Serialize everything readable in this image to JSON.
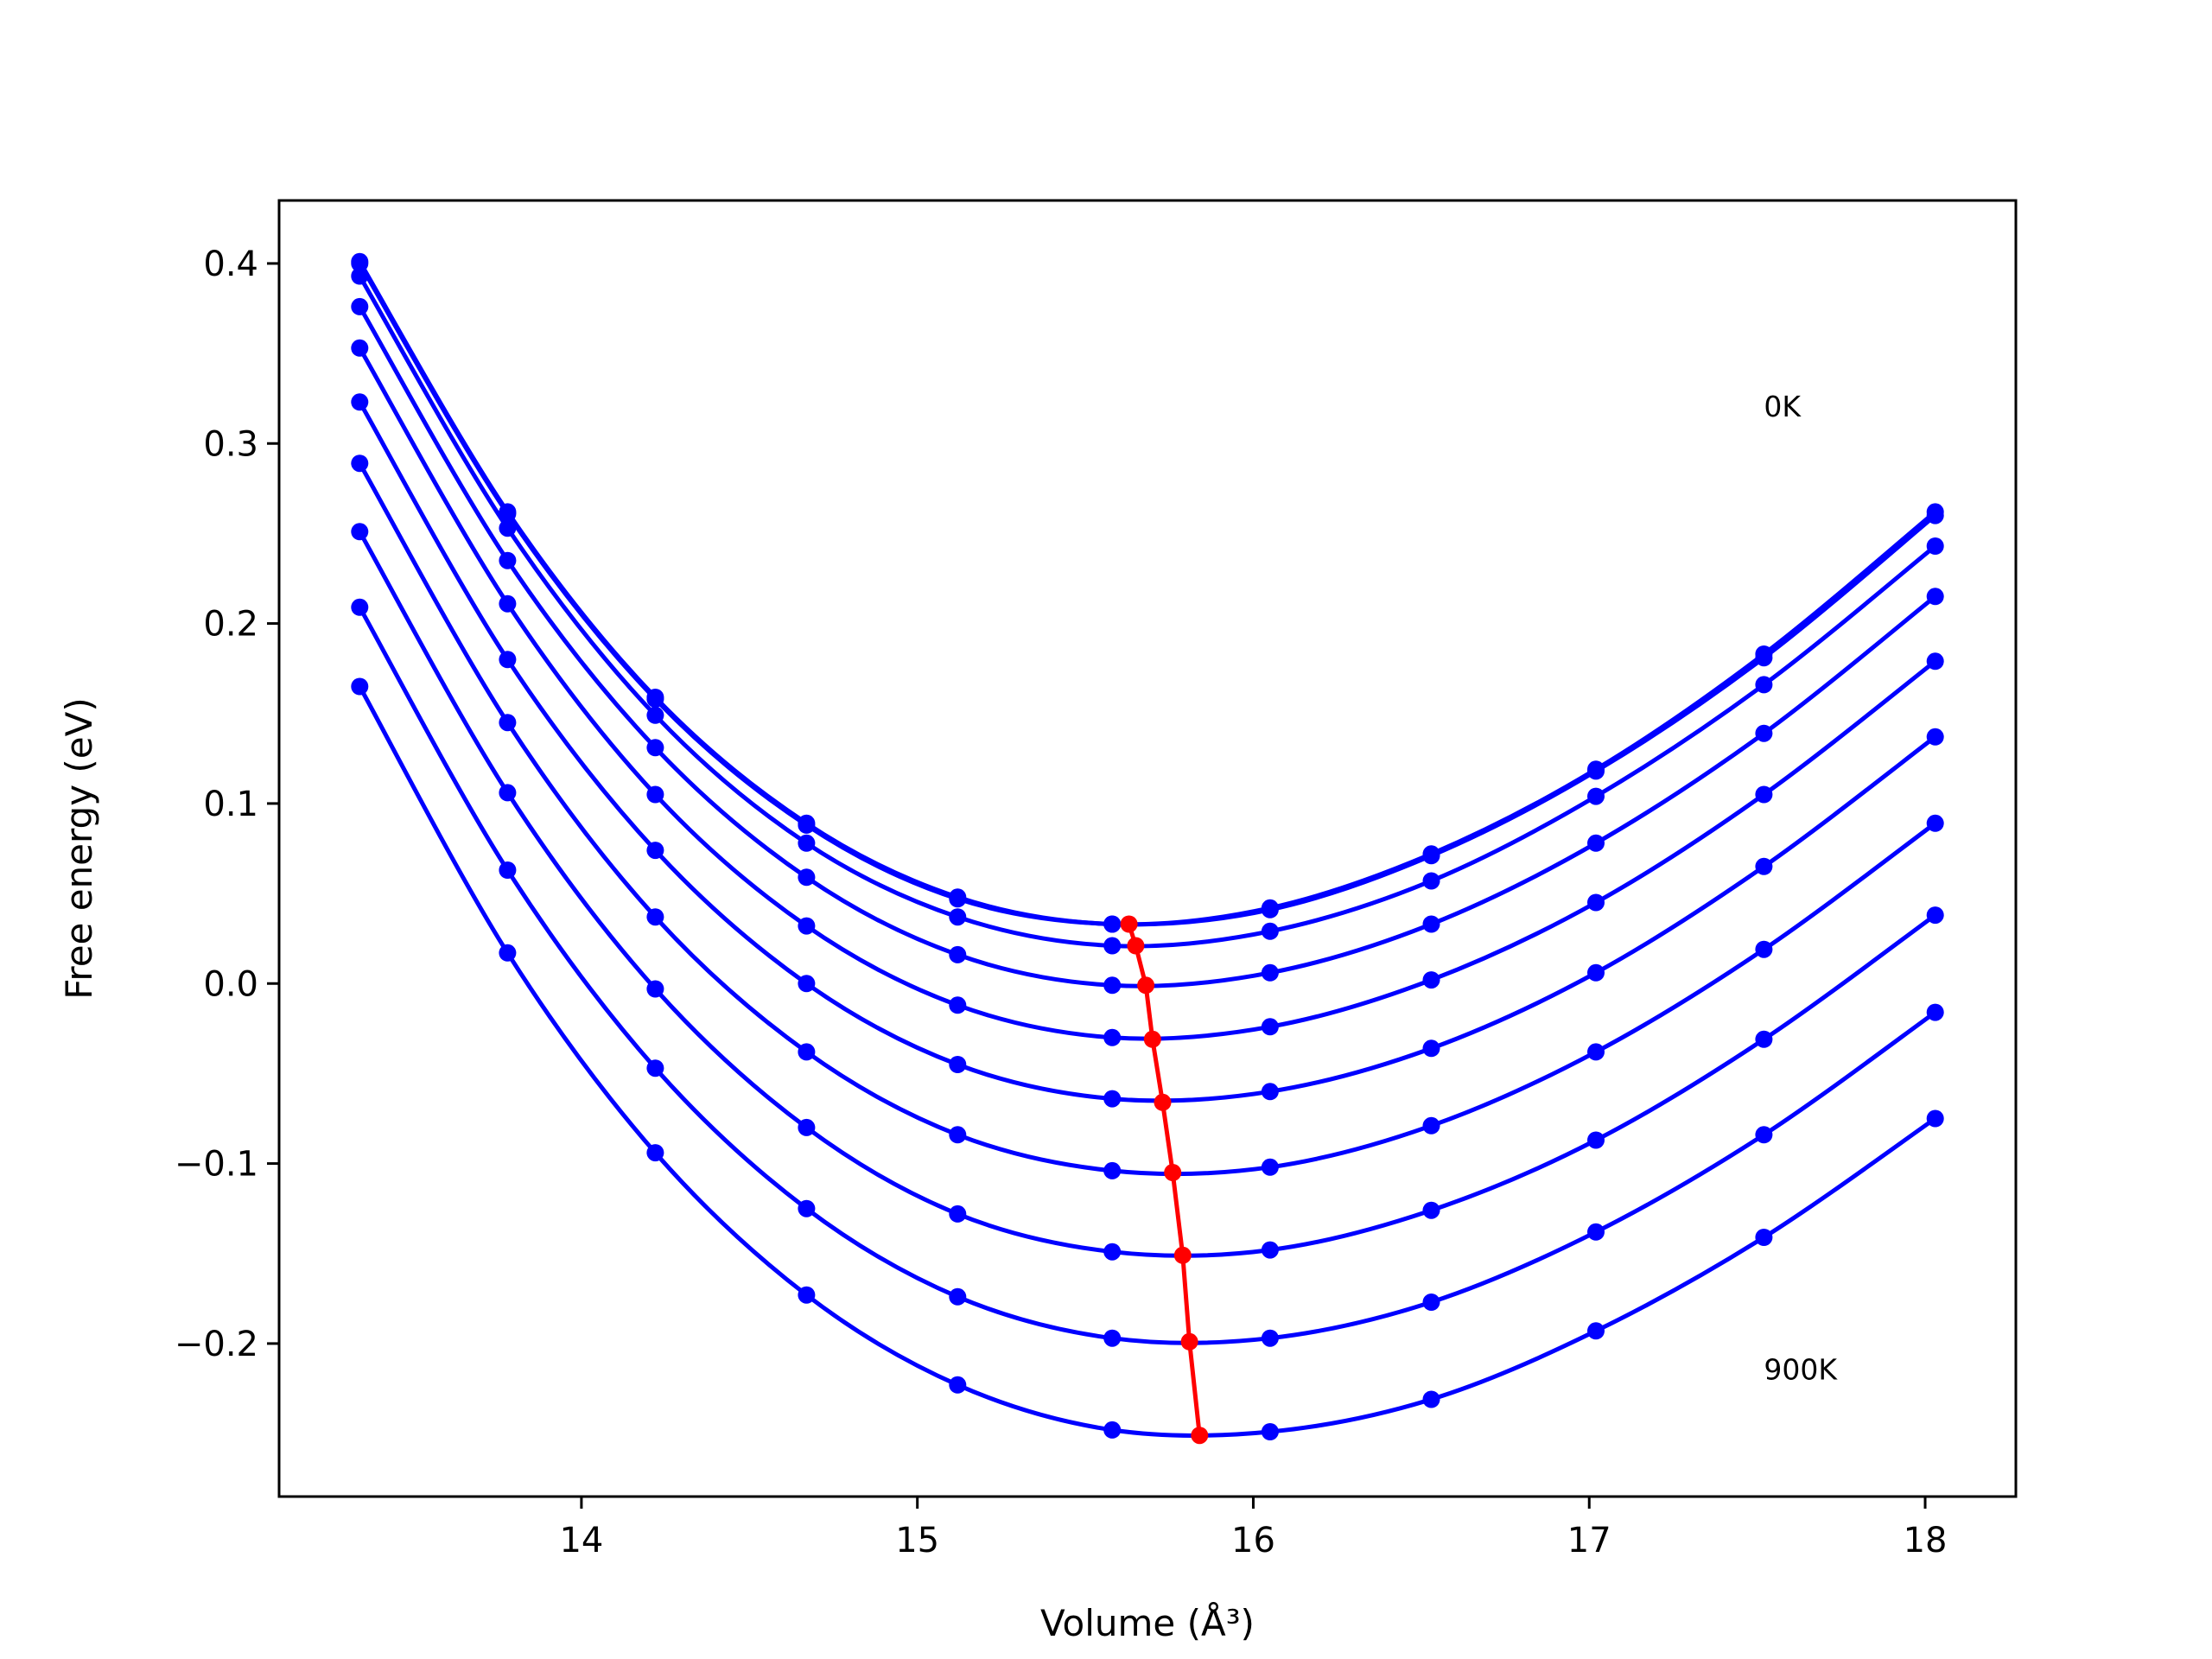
{
  "chart_data": {
    "type": "line",
    "xlabel": "Volume (Å³)",
    "ylabel": "Free energy (eV)",
    "xlim": [
      13.1,
      18.27
    ],
    "ylim": [
      -0.285,
      0.435
    ],
    "xticks": [
      14,
      15,
      16,
      17,
      18
    ],
    "xtick_labels": [
      "14",
      "15",
      "16",
      "17",
      "18"
    ],
    "yticks": [
      0.4,
      0.3,
      0.2,
      0.1,
      0.0,
      -0.1,
      -0.2
    ],
    "ytick_labels": [
      "0.4",
      "0.3",
      "0.2",
      "0.1",
      "0.0",
      "−0.1",
      "−0.2"
    ],
    "grid": false,
    "legend": "none",
    "annotations": [
      {
        "text": "0K",
        "x": 17.52,
        "y": 0.315
      },
      {
        "text": "900K",
        "x": 17.52,
        "y": -0.22
      }
    ],
    "colors": {
      "curves": "#0000ff",
      "minima": "#ff0000"
    },
    "x": [
      13.34,
      13.78,
      14.22,
      14.67,
      15.12,
      15.58,
      16.05,
      16.53,
      17.02,
      17.52,
      18.03
    ],
    "series": [
      {
        "values": [
          0.401,
          0.262,
          0.159,
          0.089,
          0.048,
          0.033,
          0.042,
          0.072,
          0.119,
          0.183,
          0.262
        ]
      },
      {
        "values": [
          0.4,
          0.261,
          0.158,
          0.088,
          0.047,
          0.033,
          0.041,
          0.071,
          0.118,
          0.181,
          0.26
        ]
      },
      {
        "values": [
          0.393,
          0.253,
          0.149,
          0.078,
          0.037,
          0.021,
          0.029,
          0.057,
          0.104,
          0.166,
          0.243
        ]
      },
      {
        "values": [
          0.376,
          0.235,
          0.131,
          0.059,
          0.016,
          -0.001,
          0.006,
          0.033,
          0.078,
          0.139,
          0.215
        ]
      },
      {
        "values": [
          0.353,
          0.211,
          0.105,
          0.032,
          -0.012,
          -0.03,
          -0.024,
          0.002,
          0.045,
          0.105,
          0.179
        ]
      },
      {
        "values": [
          0.323,
          0.18,
          0.074,
          0.0,
          -0.045,
          -0.064,
          -0.06,
          -0.036,
          0.006,
          0.065,
          0.137
        ]
      },
      {
        "values": [
          0.289,
          0.145,
          0.037,
          -0.038,
          -0.084,
          -0.104,
          -0.102,
          -0.079,
          -0.038,
          0.019,
          0.089
        ]
      },
      {
        "values": [
          0.251,
          0.106,
          -0.003,
          -0.08,
          -0.128,
          -0.149,
          -0.148,
          -0.126,
          -0.087,
          -0.031,
          0.038
        ]
      },
      {
        "values": [
          0.209,
          0.063,
          -0.047,
          -0.125,
          -0.174,
          -0.197,
          -0.197,
          -0.177,
          -0.138,
          -0.084,
          -0.016
        ]
      },
      {
        "values": [
          0.165,
          0.017,
          -0.094,
          -0.173,
          -0.223,
          -0.248,
          -0.249,
          -0.231,
          -0.193,
          -0.141,
          -0.075
        ]
      }
    ],
    "minima": {
      "x": [
        15.63,
        15.65,
        15.68,
        15.7,
        15.73,
        15.76,
        15.79,
        15.81,
        15.84
      ],
      "y": [
        0.033,
        0.021,
        -0.001,
        -0.031,
        -0.066,
        -0.105,
        -0.151,
        -0.199,
        -0.251
      ]
    }
  }
}
